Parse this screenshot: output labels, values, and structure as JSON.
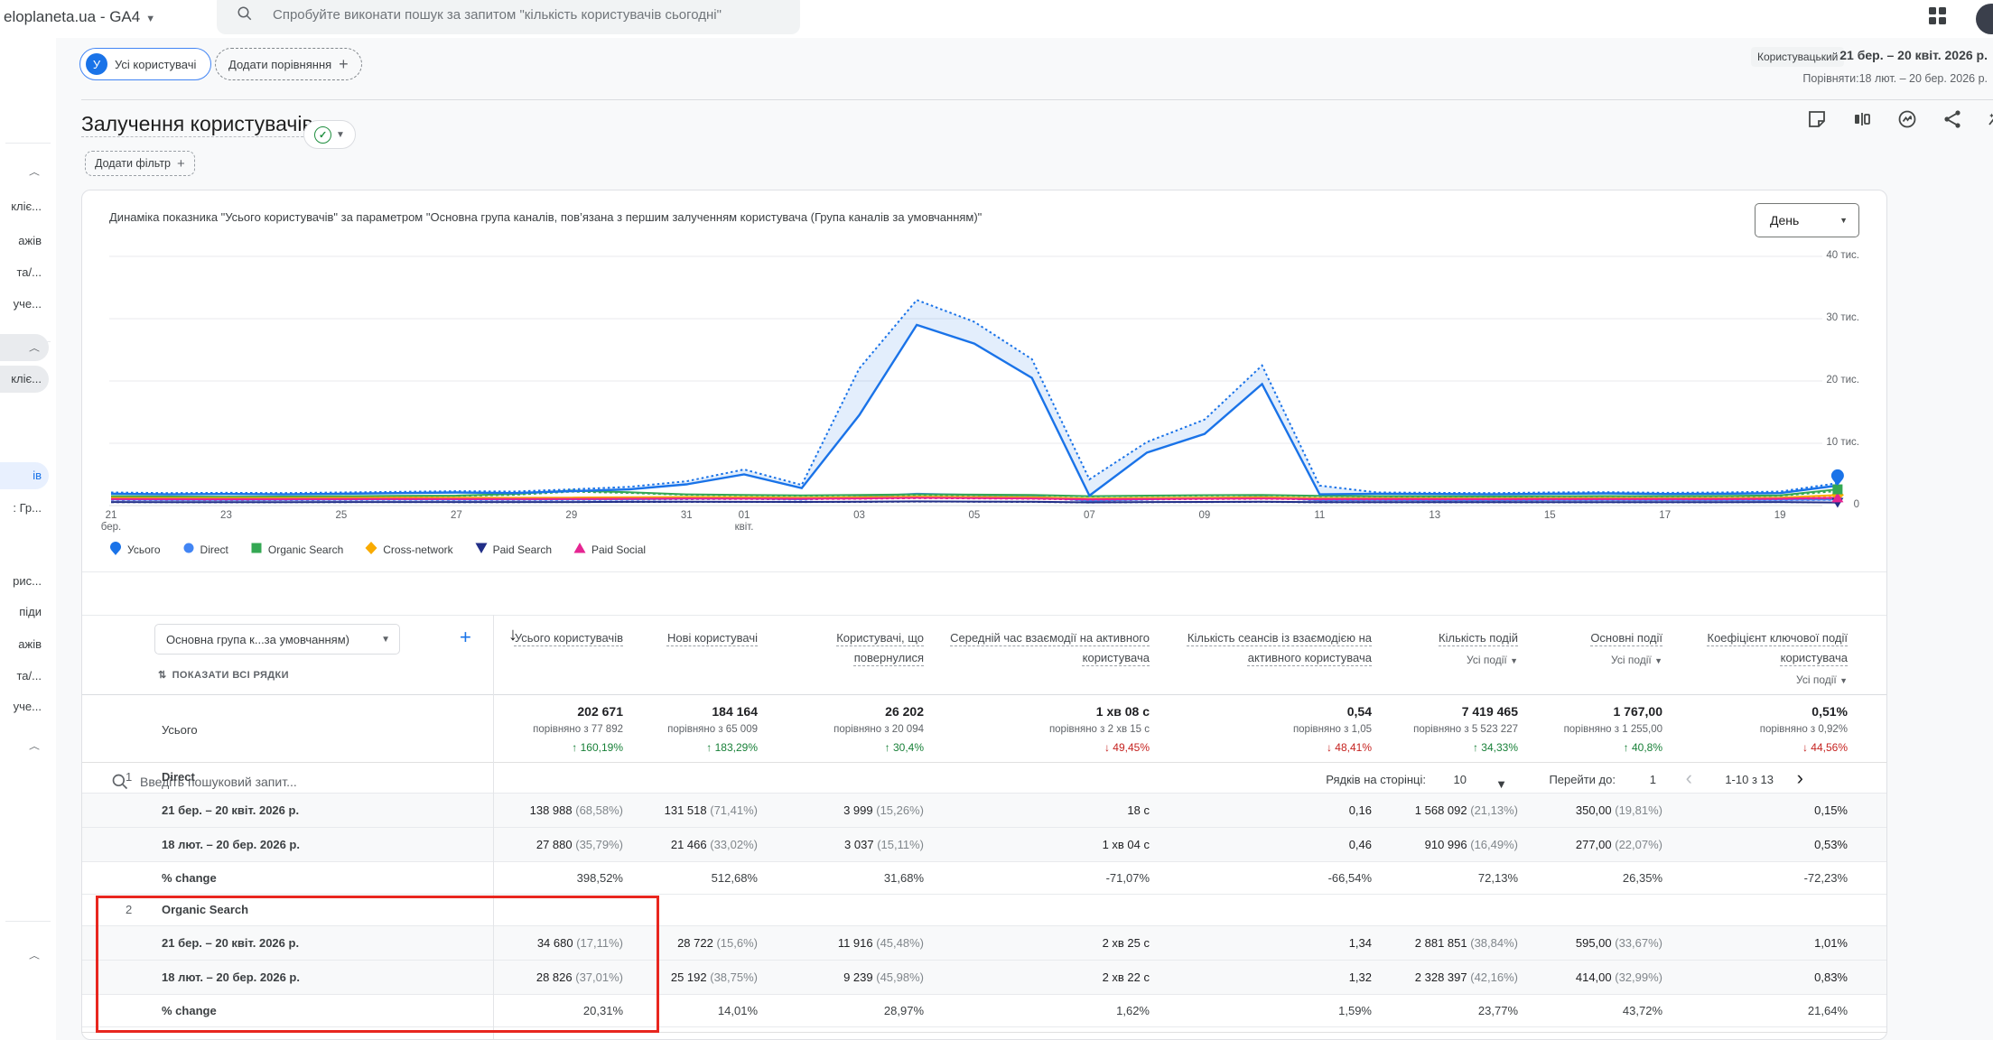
{
  "topbar": {
    "property": "eloplaneta.ua - GA4",
    "search_placeholder": "Спробуйте виконати пошук за запитом \"кількість користувачів сьогодні\"",
    "icons": [
      "apps-grid-icon",
      "account-avatar"
    ]
  },
  "header": {
    "all_users_chip": "Усі користувачі",
    "chip_avatar_letter": "У",
    "add_comparison_label": "Додати порівняння",
    "segment_type_chip": "Користувацький",
    "date_range": "21 бер. – 20 квіт. 2026 р.",
    "compare_range": "Порівняти:18 лют. – 20 бер. 2026 р.",
    "title": "Залучення користувачів",
    "add_filter_label": "Додати фільтр",
    "action_icons": [
      "note",
      "ab-compare",
      "insights-clock",
      "share",
      "sparkline"
    ]
  },
  "sidebar": {
    "items": [
      {
        "type": "chevron"
      },
      {
        "type": "text",
        "text": "кліє..."
      },
      {
        "type": "text",
        "text": "ажів"
      },
      {
        "type": "text",
        "text": "та/..."
      },
      {
        "type": "text",
        "text": "уче..."
      },
      {
        "type": "chevron",
        "pill": "gray"
      },
      {
        "type": "text",
        "text": "кліє...",
        "pill": "gray"
      },
      {
        "type": "text",
        "text": "ів",
        "pill": "blue"
      },
      {
        "type": "text",
        "text": ": Гр..."
      },
      {
        "type": "text",
        "text": "рис..."
      },
      {
        "type": "text",
        "text": "піди"
      },
      {
        "type": "text",
        "text": "ажів"
      },
      {
        "type": "text",
        "text": "та/..."
      },
      {
        "type": "text",
        "text": "уче..."
      },
      {
        "type": "chevron"
      },
      {
        "type": "chevron"
      }
    ]
  },
  "chart": {
    "subtitle": "Динаміка показника \"Усього користувачів\" за параметром \"Основна група каналів, пов’язана з першим залученням користувача (Група каналів за умовчанням)\"",
    "granularity": "День"
  },
  "chart_data": {
    "type": "line",
    "ylim": [
      0,
      40000
    ],
    "ytick_labels": [
      "40 тис.",
      "30 тис.",
      "20 тис.",
      "10 тис.",
      "0"
    ],
    "xticks": [
      {
        "day": 0,
        "label": "21",
        "sub": "бер."
      },
      {
        "day": 2,
        "label": "23"
      },
      {
        "day": 4,
        "label": "25"
      },
      {
        "day": 6,
        "label": "27"
      },
      {
        "day": 8,
        "label": "29"
      },
      {
        "day": 10,
        "label": "31"
      },
      {
        "day": 11,
        "label": "01",
        "sub": "квіт."
      },
      {
        "day": 13,
        "label": "03"
      },
      {
        "day": 15,
        "label": "05"
      },
      {
        "day": 17,
        "label": "07"
      },
      {
        "day": 19,
        "label": "09"
      },
      {
        "day": 21,
        "label": "11"
      },
      {
        "day": 23,
        "label": "13"
      },
      {
        "day": 25,
        "label": "15"
      },
      {
        "day": 27,
        "label": "17"
      },
      {
        "day": 29,
        "label": "19"
      }
    ],
    "series": [
      {
        "name": "Усього",
        "marker": "pin",
        "color": "#1a73e8",
        "current": [
          1900,
          1800,
          1850,
          1800,
          1900,
          2000,
          2100,
          2000,
          2300,
          2600,
          3400,
          5000,
          2800,
          14500,
          29000,
          26000,
          20500,
          1600,
          8500,
          11500,
          19500,
          1800,
          1900,
          1850,
          1800,
          1900,
          1950,
          1850,
          1900,
          2000,
          3200
        ],
        "previous": [
          2100,
          2000,
          2050,
          2000,
          2100,
          2200,
          2300,
          2250,
          2600,
          3000,
          3900,
          5800,
          3300,
          22000,
          33000,
          29500,
          23500,
          4200,
          10200,
          13800,
          22500,
          3200,
          2100,
          2050,
          2000,
          2100,
          2150,
          2050,
          2100,
          2250,
          3600
        ]
      },
      {
        "name": "Direct",
        "marker": "circle",
        "color": "#4285f4",
        "current": [
          950,
          920,
          900,
          930,
          950,
          980,
          960,
          950,
          970,
          1000,
          1100,
          1150,
          1000,
          1400,
          1900,
          1700,
          1500,
          750,
          1000,
          1200,
          1400,
          850,
          880,
          860,
          850,
          880,
          900,
          880,
          890,
          930,
          980
        ],
        "previous": [
          860,
          830,
          810,
          840,
          860,
          880,
          860,
          860,
          870,
          900,
          990,
          1040,
          900,
          1260,
          1710,
          1530,
          1350,
          680,
          900,
          1080,
          1260,
          770,
          790,
          770,
          770,
          790,
          810,
          790,
          800,
          840,
          880
        ]
      },
      {
        "name": "Organic Search",
        "marker": "square",
        "color": "#34a853",
        "current": [
          1500,
          1450,
          1420,
          1450,
          1500,
          1550,
          1600,
          1850,
          2400,
          2150,
          1800,
          1700,
          1620,
          1700,
          1800,
          1760,
          1700,
          1500,
          1600,
          1660,
          1700,
          1550,
          1500,
          1480,
          1460,
          1500,
          1520,
          1500,
          1530,
          1620,
          2600
        ],
        "previous": [
          1420,
          1380,
          1350,
          1380,
          1420,
          1470,
          1520,
          1700,
          2200,
          2000,
          1700,
          1610,
          1540,
          1620,
          1710,
          1670,
          1620,
          1430,
          1520,
          1580,
          1620,
          1470,
          1430,
          1410,
          1390,
          1430,
          1440,
          1430,
          1450,
          1540,
          2300
        ]
      },
      {
        "name": "Cross-network",
        "marker": "diamond",
        "color": "#f9ab00",
        "current": [
          1250,
          1220,
          1200,
          1220,
          1250,
          1290,
          1260,
          1250,
          1280,
          1330,
          1380,
          1330,
          1280,
          1330,
          1430,
          1380,
          1330,
          1130,
          1230,
          1280,
          1330,
          1180,
          1180,
          1160,
          1150,
          1180,
          1200,
          1180,
          1200,
          1280,
          1700
        ],
        "previous": [
          1150,
          1120,
          1100,
          1120,
          1150,
          1190,
          1160,
          1150,
          1180,
          1220,
          1270,
          1220,
          1180,
          1220,
          1320,
          1270,
          1220,
          1040,
          1130,
          1180,
          1220,
          1090,
          1090,
          1070,
          1060,
          1090,
          1100,
          1090,
          1100,
          1180,
          1560
        ]
      },
      {
        "name": "Paid Search",
        "marker": "triangle-down",
        "color": "#212e87",
        "current": [
          560,
          550,
          540,
          550,
          560,
          570,
          565,
          560,
          570,
          590,
          610,
          600,
          580,
          610,
          660,
          640,
          610,
          510,
          560,
          580,
          610,
          530,
          540,
          535,
          530,
          540,
          550,
          540,
          550,
          570,
          500
        ],
        "previous": [
          520,
          510,
          500,
          510,
          520,
          530,
          525,
          520,
          530,
          550,
          570,
          560,
          540,
          570,
          610,
          590,
          570,
          470,
          520,
          540,
          570,
          490,
          500,
          495,
          490,
          500,
          510,
          500,
          510,
          530,
          460
        ]
      },
      {
        "name": "Paid Social",
        "marker": "triangle-up",
        "color": "#e52592",
        "current": [
          1050,
          1030,
          1010,
          1030,
          1050,
          1070,
          1060,
          1050,
          1070,
          1100,
          1150,
          1130,
          1100,
          1150,
          1250,
          1200,
          1150,
          1000,
          1050,
          1100,
          1150,
          1030,
          1040,
          1030,
          1030,
          1040,
          1050,
          1040,
          1050,
          1100,
          1250
        ],
        "previous": [
          970,
          950,
          930,
          950,
          970,
          990,
          980,
          970,
          990,
          1020,
          1060,
          1040,
          1020,
          1060,
          1160,
          1110,
          1060,
          920,
          970,
          1020,
          1060,
          950,
          960,
          950,
          950,
          960,
          970,
          960,
          970,
          1020,
          1150
        ]
      }
    ]
  },
  "table": {
    "search_placeholder": "Введіть пошуковий запит...",
    "rows_per_page_label": "Рядків на сторінці:",
    "rows_per_page_value": "10",
    "goto_label": "Перейти до:",
    "goto_value": "1",
    "pagination_range": "1-10 з 13",
    "dimension_selector": "Основна група к...за умовчанням)",
    "show_all_rows_label": "ПОКАЗАТИ ВСІ РЯДКИ",
    "totals_label": "Усього",
    "columns": [
      {
        "title": "Усього користувачів"
      },
      {
        "title": "Нові користувачі"
      },
      {
        "title": "Користувачі, що повернулися"
      },
      {
        "title": "Середній час взаємодії на активного користувача"
      },
      {
        "title": "Кількість сеансів із взаємодією на активного користувача"
      },
      {
        "title": "Кількість подій",
        "sub": "Усі події"
      },
      {
        "title": "Основні події",
        "sub": "Усі події"
      },
      {
        "title": "Коефіцієнт ключової події користувача",
        "sub": "Усі події"
      }
    ],
    "totals": [
      {
        "value": "202 671",
        "compare": "порівняно з 77 892",
        "change": "160,19%",
        "dir": "up"
      },
      {
        "value": "184 164",
        "compare": "порівняно з 65 009",
        "change": "183,29%",
        "dir": "up"
      },
      {
        "value": "26 202",
        "compare": "порівняно з 20 094",
        "change": "30,4%",
        "dir": "up"
      },
      {
        "value": "1 хв 08 с",
        "compare": "порівняно з 2 хв 15 с",
        "change": "49,45%",
        "dir": "down"
      },
      {
        "value": "0,54",
        "compare": "порівняно з 1,05",
        "change": "48,41%",
        "dir": "down"
      },
      {
        "value": "7 419 465",
        "compare": "порівняно з 5 523 227",
        "change": "34,33%",
        "dir": "up"
      },
      {
        "value": "1 767,00",
        "compare": "порівняно з 1 255,00",
        "change": "40,8%",
        "dir": "up"
      },
      {
        "value": "0,51%",
        "compare": "порівняно з 0,92%",
        "change": "44,56%",
        "dir": "down"
      }
    ],
    "groups": [
      {
        "num": "1",
        "channel": "Direct",
        "highlighted": false,
        "rows": [
          {
            "label": "21 бер. – 20 квіт. 2026 р.",
            "values": [
              "138 988 (68,58%)",
              "131 518 (71,41%)",
              "3 999 (15,26%)",
              "18 с",
              "0,16",
              "1 568 092 (21,13%)",
              "350,00 (19,81%)",
              "0,15%"
            ]
          },
          {
            "label": "18 лют. – 20 бер. 2026 р.",
            "values": [
              "27 880 (35,79%)",
              "21 466 (33,02%)",
              "3 037 (15,11%)",
              "1 хв 04 с",
              "0,46",
              "910 996 (16,49%)",
              "277,00 (22,07%)",
              "0,53%"
            ]
          },
          {
            "label": "% change",
            "values": [
              "398,52%",
              "512,68%",
              "31,68%",
              "-71,07%",
              "-66,54%",
              "72,13%",
              "26,35%",
              "-72,23%"
            ]
          }
        ]
      },
      {
        "num": "2",
        "channel": "Organic Search",
        "highlighted": true,
        "rows": [
          {
            "label": "21 бер. – 20 квіт. 2026 р.",
            "values": [
              "34 680 (17,11%)",
              "28 722 (15,6%)",
              "11 916 (45,48%)",
              "2 хв 25 с",
              "1,34",
              "2 881 851 (38,84%)",
              "595,00 (33,67%)",
              "1,01%"
            ]
          },
          {
            "label": "18 лют. – 20 бер. 2026 р.",
            "values": [
              "28 826 (37,01%)",
              "25 192 (38,75%)",
              "9 239 (45,98%)",
              "2 хв 22 с",
              "1,32",
              "2 328 397 (42,16%)",
              "414,00 (32,99%)",
              "0,83%"
            ]
          },
          {
            "label": "% change",
            "values": [
              "20,31%",
              "14,01%",
              "28,97%",
              "1,62%",
              "1,59%",
              "23,77%",
              "43,72%",
              "21,64%"
            ]
          }
        ]
      }
    ],
    "annotation": {
      "highlighted_channel": "Organic Search",
      "color": "#e8261f"
    }
  }
}
